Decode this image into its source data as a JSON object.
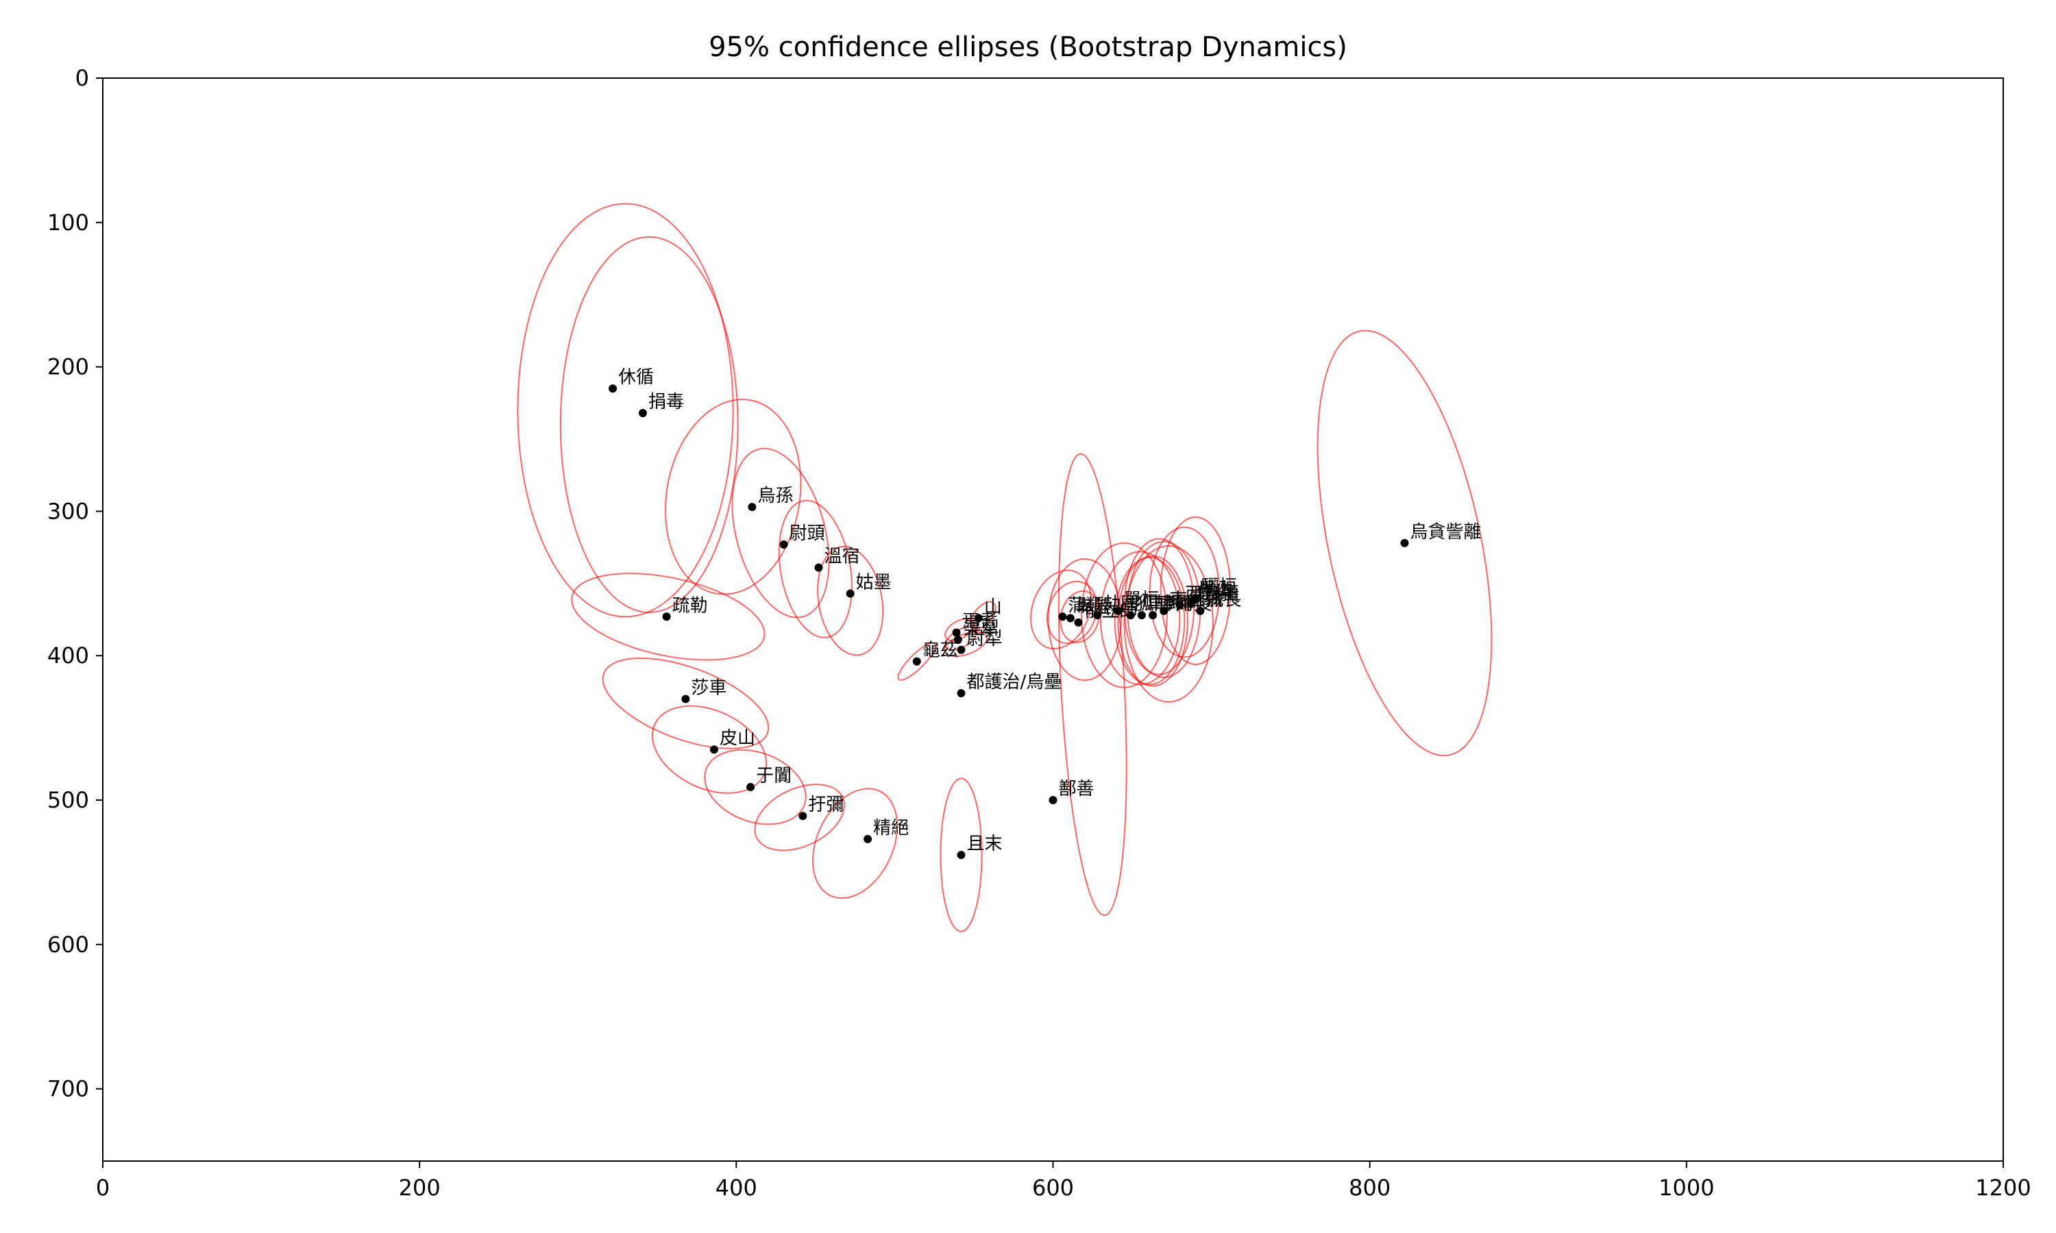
{
  "chart_data": {
    "type": "scatter",
    "title": "95% confidence ellipses (Bootstrap Dynamics)",
    "xlabel": "",
    "ylabel": "",
    "xlim": [
      0,
      1200
    ],
    "ylim": [
      750,
      0
    ],
    "y_inverted": true,
    "grid": false,
    "x_ticks": [
      "0",
      "200",
      "400",
      "600",
      "800",
      "1000",
      "1200"
    ],
    "y_ticks": [
      "0",
      "100",
      "200",
      "300",
      "400",
      "500",
      "600",
      "700"
    ],
    "colors": {
      "ellipse": "#ff0000",
      "point": "#000000"
    },
    "points": [
      {
        "label": "休循",
        "x": 322,
        "y": 215,
        "ellipse": {
          "cx": 330,
          "cy": 230,
          "rx": 68,
          "ry": 143,
          "angle": 0
        }
      },
      {
        "label": "捐毒",
        "x": 341,
        "y": 232,
        "ellipse": {
          "cx": 345,
          "cy": 240,
          "rx": 56,
          "ry": 130,
          "angle": 0
        }
      },
      {
        "label": "烏孫",
        "x": 410,
        "y": 297,
        "ellipse": {
          "cx": 398,
          "cy": 290,
          "rx": 42,
          "ry": 68,
          "angle": 10
        }
      },
      {
        "label": "尉頭",
        "x": 430,
        "y": 323,
        "ellipse": {
          "cx": 428,
          "cy": 315,
          "rx": 28,
          "ry": 60,
          "angle": -15
        }
      },
      {
        "label": "溫宿",
        "x": 452,
        "y": 339,
        "ellipse": {
          "cx": 450,
          "cy": 340,
          "rx": 22,
          "ry": 48,
          "angle": -10
        }
      },
      {
        "label": "姑墨",
        "x": 472,
        "y": 357,
        "ellipse": {
          "cx": 472,
          "cy": 362,
          "rx": 20,
          "ry": 38,
          "angle": -10
        }
      },
      {
        "label": "疏勒",
        "x": 356,
        "y": 373,
        "ellipse": {
          "cx": 357,
          "cy": 373,
          "rx": 62,
          "ry": 27,
          "angle": 12
        }
      },
      {
        "label": "莎車",
        "x": 368,
        "y": 430,
        "ellipse": {
          "cx": 368,
          "cy": 433,
          "rx": 55,
          "ry": 25,
          "angle": 20
        }
      },
      {
        "label": "皮山",
        "x": 386,
        "y": 465,
        "ellipse": {
          "cx": 383,
          "cy": 465,
          "rx": 38,
          "ry": 27,
          "angle": 25
        }
      },
      {
        "label": "于闐",
        "x": 409,
        "y": 491,
        "ellipse": {
          "cx": 412,
          "cy": 491,
          "rx": 33,
          "ry": 24,
          "angle": 20
        }
      },
      {
        "label": "扜彌",
        "x": 442,
        "y": 511,
        "ellipse": {
          "cx": 440,
          "cy": 512,
          "rx": 30,
          "ry": 20,
          "angle": -25
        }
      },
      {
        "label": "精絕",
        "x": 483,
        "y": 527,
        "ellipse": {
          "cx": 475,
          "cy": 530,
          "rx": 24,
          "ry": 40,
          "angle": 25
        }
      },
      {
        "label": "且末",
        "x": 542,
        "y": 538,
        "ellipse": {
          "cx": 542,
          "cy": 538,
          "rx": 13,
          "ry": 53,
          "angle": 0
        }
      },
      {
        "label": "鄯善",
        "x": 600,
        "y": 500,
        "ellipse": {
          "cx": 600,
          "cy": 500,
          "rx": 0,
          "ry": 0,
          "angle": 0
        }
      },
      {
        "label": "都護治/烏壘",
        "x": 542,
        "y": 426,
        "ellipse": {
          "cx": 542,
          "cy": 426,
          "rx": 0,
          "ry": 0,
          "angle": 0
        }
      },
      {
        "label": "龜茲",
        "x": 514,
        "y": 404,
        "ellipse": {
          "cx": 514,
          "cy": 404,
          "rx": 16,
          "ry": 5,
          "angle": -45
        }
      },
      {
        "label": "尉犁",
        "x": 542,
        "y": 396,
        "ellipse": {
          "cx": 545,
          "cy": 392,
          "rx": 14,
          "ry": 7,
          "angle": -20
        }
      },
      {
        "label": "渠犁",
        "x": 540,
        "y": 389,
        "ellipse": {
          "cx": 542,
          "cy": 388,
          "rx": 11,
          "ry": 6,
          "angle": -30
        }
      },
      {
        "label": "焉耆",
        "x": 539,
        "y": 384,
        "ellipse": {
          "cx": 541,
          "cy": 382,
          "rx": 10,
          "ry": 6,
          "angle": -30
        }
      },
      {
        "label": "山",
        "x": 553,
        "y": 374,
        "ellipse": {
          "cx": 556,
          "cy": 372,
          "rx": 10,
          "ry": 6,
          "angle": -50
        }
      },
      {
        "label": "蒲類",
        "x": 606,
        "y": 373,
        "ellipse": {
          "cx": 605,
          "cy": 368,
          "rx": 18,
          "ry": 28,
          "angle": 20
        }
      },
      {
        "label": "卑陸",
        "x": 611,
        "y": 374,
        "ellipse": {
          "cx": 612,
          "cy": 370,
          "rx": 15,
          "ry": 22,
          "angle": 20
        }
      },
      {
        "label": "郁立師",
        "x": 616,
        "y": 377,
        "ellipse": {
          "cx": 617,
          "cy": 373,
          "rx": 12,
          "ry": 18,
          "angle": 15
        }
      },
      {
        "label": "劫國",
        "x": 628,
        "y": 372,
        "ellipse": {
          "cx": 625,
          "cy": 420,
          "rx": 20,
          "ry": 160,
          "angle": -3
        }
      },
      {
        "label": "單桓",
        "x": 641,
        "y": 369,
        "ellipse": {
          "cx": 620,
          "cy": 375,
          "rx": 23,
          "ry": 42,
          "angle": 0
        }
      },
      {
        "label": "狐胡",
        "x": 649,
        "y": 372,
        "ellipse": {
          "cx": 645,
          "cy": 372,
          "rx": 27,
          "ry": 50,
          "angle": 0
        }
      },
      {
        "label": "車師前",
        "x": 656,
        "y": 372,
        "ellipse": {
          "cx": 655,
          "cy": 374,
          "rx": 25,
          "ry": 46,
          "angle": 0
        }
      },
      {
        "label": "車師後",
        "x": 663,
        "y": 372,
        "ellipse": {
          "cx": 661,
          "cy": 376,
          "rx": 22,
          "ry": 44,
          "angle": 0
        }
      },
      {
        "label": "東且彌",
        "x": 670,
        "y": 369,
        "ellipse": {
          "cx": 663,
          "cy": 376,
          "rx": 22,
          "ry": 45,
          "angle": 0
        }
      },
      {
        "label": "西且彌",
        "x": 680,
        "y": 365,
        "ellipse": {
          "cx": 667,
          "cy": 366,
          "rx": 22,
          "ry": 47,
          "angle": 0
        }
      },
      {
        "label": "危須",
        "x": 687,
        "y": 364,
        "ellipse": {
          "cx": 670,
          "cy": 368,
          "rx": 23,
          "ry": 47,
          "angle": 0
        }
      },
      {
        "label": "墨山",
        "x": 688,
        "y": 362,
        "ellipse": {
          "cx": 673,
          "cy": 378,
          "rx": 28,
          "ry": 54,
          "angle": 0
        }
      },
      {
        "label": "城長",
        "x": 693,
        "y": 369,
        "ellipse": {
          "cx": 690,
          "cy": 355,
          "rx": 22,
          "ry": 51,
          "angle": 0
        }
      },
      {
        "label": "驪桓",
        "x": 690,
        "y": 360,
        "ellipse": {
          "cx": 683,
          "cy": 356,
          "rx": 22,
          "ry": 45,
          "angle": 0
        }
      },
      {
        "label": "烏貪訾離",
        "x": 822,
        "y": 322,
        "ellipse": {
          "cx": 822,
          "cy": 322,
          "rx": 48,
          "ry": 150,
          "angle": -12
        }
      }
    ]
  }
}
